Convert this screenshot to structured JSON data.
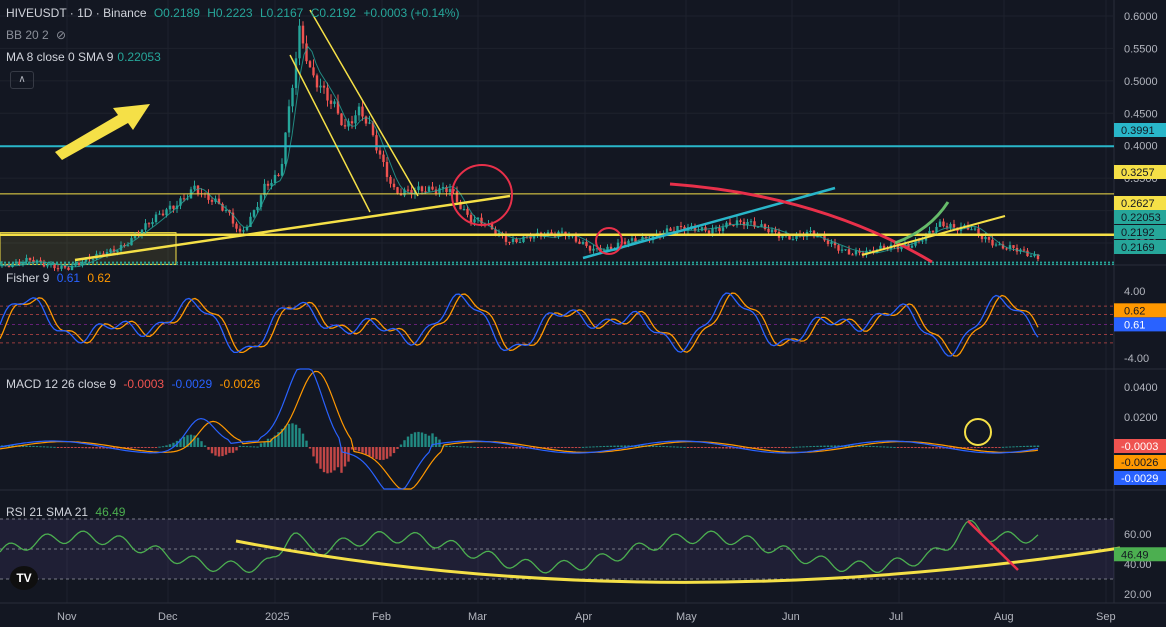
{
  "header": {
    "symbol": "HIVEUSDT · 1D · Binance",
    "open": "O0.2189",
    "high": "H0.2223",
    "low": "L0.2167",
    "close": "C0.2192",
    "change": "+0.0003 (+0.14%)",
    "bb_label": "BB 20 2",
    "ma_label": "MA 8 close 0 SMA 9",
    "ma_value": "0.22053"
  },
  "fisher_legend": {
    "label": "Fisher 9",
    "v1": "0.61",
    "v2": "0.62"
  },
  "macd_legend": {
    "label": "MACD 12 26 close 9",
    "hist": "-0.0003",
    "macd": "-0.0029",
    "signal": "-0.0026"
  },
  "rsi_legend": {
    "label": "RSI 21 SMA 21",
    "value": "46.49"
  },
  "logo_text": "TV",
  "colors": {
    "background": "#131722",
    "up": "#26a69a",
    "down": "#ef5350",
    "cyan_line": "#29b6c9",
    "yellow": "#f5e047",
    "red_curve": "#e8304a",
    "blue": "#2962ff",
    "orange": "#ff9800",
    "rsi_line": "#4caf50",
    "panel_purple": "#7e57c2"
  },
  "chart_data": [
    {
      "type": "candlestick",
      "title": "HIVEUSDT · 1D · Binance",
      "x_ticks": [
        "Nov",
        "Dec",
        "2025",
        "Feb",
        "Mar",
        "Apr",
        "May",
        "Jun",
        "Jul",
        "Aug",
        "Sep"
      ],
      "y_ticks": [
        "0.6000",
        "0.5500",
        "0.5000",
        "0.4500",
        "0.4000",
        "0.3500",
        "0.3000",
        "0.2500"
      ],
      "ylim": [
        0.205,
        0.615
      ],
      "price_path": [
        [
          0,
          0.215
        ],
        [
          15,
          0.215
        ],
        [
          30,
          0.222
        ],
        [
          50,
          0.218
        ],
        [
          70,
          0.212
        ],
        [
          90,
          0.223
        ],
        [
          105,
          0.235
        ],
        [
          125,
          0.25
        ],
        [
          150,
          0.278
        ],
        [
          175,
          0.31
        ],
        [
          195,
          0.34
        ],
        [
          205,
          0.32
        ],
        [
          215,
          0.31
        ],
        [
          230,
          0.29
        ],
        [
          240,
          0.265
        ],
        [
          250,
          0.29
        ],
        [
          265,
          0.34
        ],
        [
          280,
          0.35
        ],
        [
          290,
          0.46
        ],
        [
          300,
          0.58
        ],
        [
          310,
          0.52
        ],
        [
          320,
          0.5
        ],
        [
          335,
          0.46
        ],
        [
          345,
          0.42
        ],
        [
          360,
          0.45
        ],
        [
          370,
          0.43
        ],
        [
          380,
          0.39
        ],
        [
          395,
          0.33
        ],
        [
          410,
          0.325
        ],
        [
          430,
          0.33
        ],
        [
          450,
          0.34
        ],
        [
          460,
          0.31
        ],
        [
          470,
          0.285
        ],
        [
          480,
          0.28
        ],
        [
          490,
          0.27
        ],
        [
          500,
          0.262
        ],
        [
          510,
          0.255
        ],
        [
          530,
          0.262
        ],
        [
          550,
          0.258
        ],
        [
          565,
          0.265
        ],
        [
          580,
          0.255
        ],
        [
          595,
          0.24
        ],
        [
          610,
          0.237
        ],
        [
          625,
          0.25
        ],
        [
          650,
          0.263
        ],
        [
          670,
          0.268
        ],
        [
          690,
          0.27
        ],
        [
          710,
          0.273
        ],
        [
          730,
          0.28
        ],
        [
          750,
          0.276
        ],
        [
          770,
          0.272
        ],
        [
          790,
          0.26
        ],
        [
          810,
          0.262
        ],
        [
          830,
          0.25
        ],
        [
          850,
          0.238
        ],
        [
          870,
          0.234
        ],
        [
          890,
          0.242
        ],
        [
          910,
          0.25
        ],
        [
          925,
          0.262
        ],
        [
          940,
          0.275
        ],
        [
          955,
          0.27
        ],
        [
          970,
          0.278
        ],
        [
          985,
          0.26
        ],
        [
          1000,
          0.242
        ],
        [
          1015,
          0.238
        ],
        [
          1030,
          0.232
        ],
        [
          1040,
          0.229
        ]
      ],
      "series": [
        {
          "name": "MA 8 close 0 SMA 9",
          "last": 0.22053
        }
      ],
      "horizontal_levels": [
        {
          "price": 0.3991,
          "label": "0.3991",
          "color": "#29b6c9"
        },
        {
          "price": 0.3257,
          "label": "0.3257",
          "color": "#f5e047"
        },
        {
          "price": 0.2627,
          "label": "0.2627",
          "color": "#f5e047"
        },
        {
          "price": 0.22053,
          "label": "0.22053",
          "color": "#26a69a"
        },
        {
          "price": 0.2192,
          "label": "0.2192",
          "color": "#26a69a"
        },
        {
          "price": 0.2169,
          "label": "0.2169",
          "color": "#26a69a"
        }
      ]
    },
    {
      "type": "line",
      "title": "Fisher 9",
      "y_ticks": [
        "4.00",
        "-4.00"
      ],
      "ylim": [
        -4.5,
        4.5
      ],
      "series": [
        {
          "name": "Fisher",
          "color": "#2962ff",
          "last": 0.61
        },
        {
          "name": "Trigger",
          "color": "#ff9800",
          "last": 0.62
        }
      ],
      "labels": [
        "0.62",
        "0.61"
      ]
    },
    {
      "type": "bar",
      "title": "MACD 12 26 close 9",
      "y_ticks": [
        "0.0400",
        "0.0200"
      ],
      "ylim": [
        -0.05,
        0.06
      ],
      "series": [
        {
          "name": "Histogram",
          "last": -0.0003
        },
        {
          "name": "Signal",
          "color": "#ff9800",
          "last": -0.0026
        },
        {
          "name": "MACD",
          "color": "#2962ff",
          "last": -0.0029
        }
      ],
      "labels": [
        "-0.0003",
        "-0.0026",
        "-0.0029"
      ]
    },
    {
      "type": "line",
      "title": "RSI 21 SMA 21",
      "y_ticks": [
        "60.00",
        "40.00",
        "20.00"
      ],
      "ylim": [
        20,
        80
      ],
      "bands": [
        70,
        50,
        30
      ],
      "series": [
        {
          "name": "RSI",
          "color": "#4caf50",
          "last": 46.49
        }
      ],
      "labels": [
        "46.49"
      ]
    }
  ]
}
